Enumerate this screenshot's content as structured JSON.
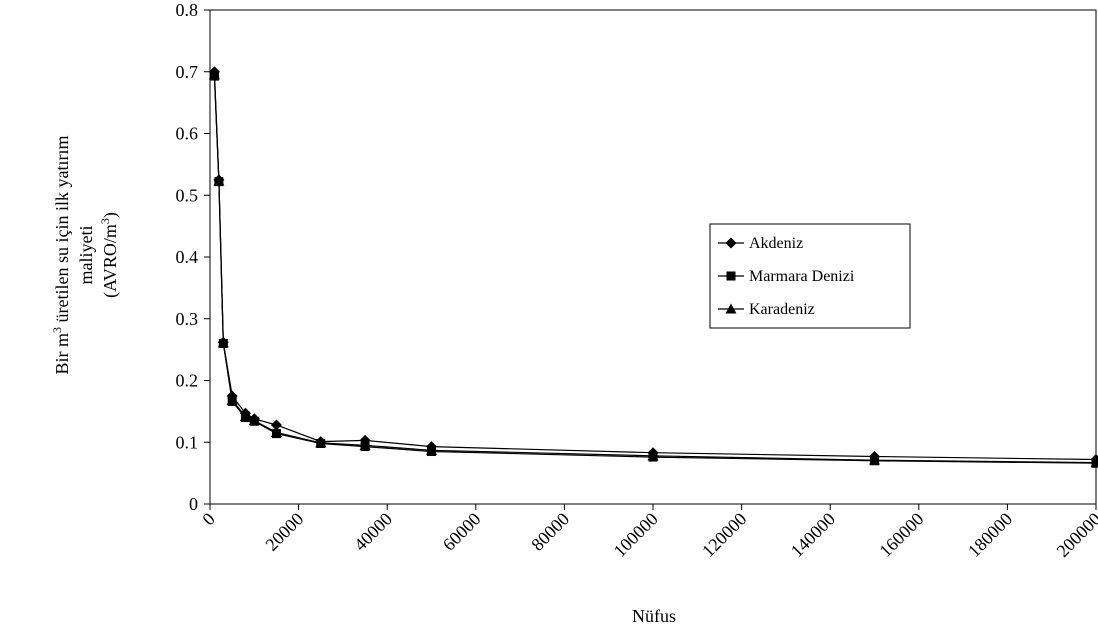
{
  "chart_data": {
    "type": "line",
    "title": "",
    "xlabel": "Nüfus",
    "ylabel": {
      "line1_prefix": "Bir m",
      "line1_sup": "3",
      "line1_suffix": " üretilen su için ilk yatırım",
      "line2": "maliyeti",
      "line3_prefix": "(AVRO/m",
      "line3_sup": "3",
      "line3_suffix": ")"
    },
    "xlim": [
      0,
      200000
    ],
    "ylim": [
      0,
      0.8
    ],
    "x_ticks": [
      0,
      20000,
      40000,
      60000,
      80000,
      100000,
      120000,
      140000,
      160000,
      180000,
      200000
    ],
    "y_ticks": [
      0,
      0.1,
      0.2,
      0.3,
      0.4,
      0.5,
      0.6,
      0.7,
      0.8
    ],
    "y_tick_labels": [
      "0",
      "0.1",
      "0.2",
      "0.3",
      "0.4",
      "0.5",
      "0.6",
      "0.7",
      "0.8"
    ],
    "grid": false,
    "legend_position": "right",
    "series": [
      {
        "name": "Akdeniz",
        "marker": "diamond",
        "x": [
          1000,
          2000,
          3000,
          5000,
          8000,
          10000,
          15000,
          25000,
          35000,
          50000,
          100000,
          150000,
          200000
        ],
        "y": [
          0.7,
          0.525,
          0.262,
          0.175,
          0.147,
          0.138,
          0.128,
          0.101,
          0.103,
          0.093,
          0.083,
          0.077,
          0.072
        ]
      },
      {
        "name": "Marmara Denizi",
        "marker": "square",
        "x": [
          1000,
          2000,
          3000,
          5000,
          8000,
          10000,
          15000,
          25000,
          35000,
          50000,
          100000,
          150000,
          200000
        ],
        "y": [
          0.693,
          0.522,
          0.26,
          0.166,
          0.14,
          0.134,
          0.114,
          0.098,
          0.093,
          0.085,
          0.076,
          0.07,
          0.066
        ]
      },
      {
        "name": "Karadeniz",
        "marker": "triangle",
        "x": [
          1000,
          2000,
          3000,
          5000,
          8000,
          10000,
          15000,
          25000,
          35000,
          50000,
          100000,
          150000,
          200000
        ],
        "y": [
          0.695,
          0.523,
          0.261,
          0.168,
          0.142,
          0.135,
          0.116,
          0.099,
          0.095,
          0.087,
          0.078,
          0.071,
          0.067
        ]
      }
    ]
  }
}
